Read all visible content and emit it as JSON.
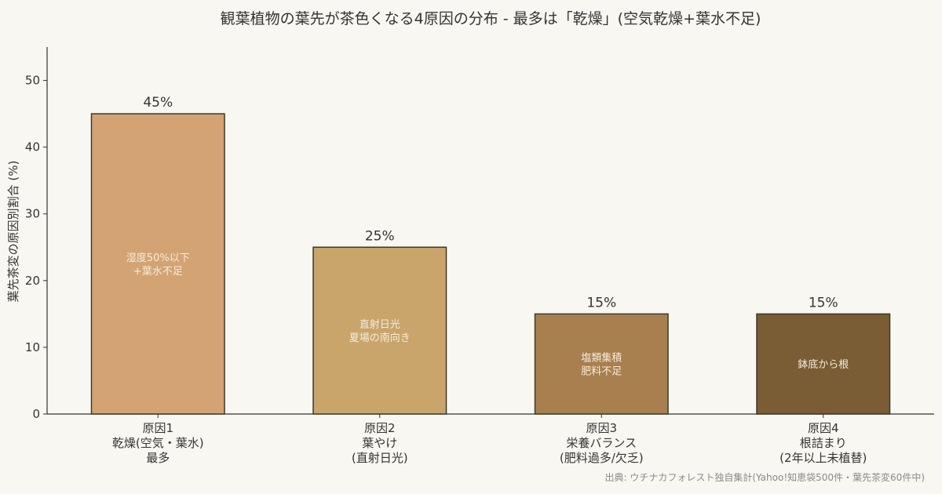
{
  "chart_data": {
    "type": "bar",
    "title": "観葉植物の葉先が茶色くなる4原因の分布 - 最多は「乾燥」(空気乾燥+葉水不足)",
    "ylabel": "葉先茶変の原因別割合 (%)",
    "xlabel": "",
    "ylim": [
      0,
      55
    ],
    "yticks": [
      0,
      10,
      20,
      30,
      40,
      50
    ],
    "grid": false,
    "categories": [
      [
        "原因1",
        "乾燥(空気・葉水)",
        "最多"
      ],
      [
        "原因2",
        "葉やけ",
        "(直射日光)"
      ],
      [
        "原因3",
        "栄養バランス",
        "(肥料過多/欠乏)"
      ],
      [
        "原因4",
        "根詰まり",
        "(2年以上未植替)"
      ]
    ],
    "values": [
      45,
      25,
      15,
      15
    ],
    "value_labels": [
      "45%",
      "25%",
      "15%",
      "15%"
    ],
    "inside_labels": [
      [
        "湿度50%以下",
        "+葉水不足"
      ],
      [
        "直射日光",
        "夏場の南向き"
      ],
      [
        "塩類集積",
        "肥料不足"
      ],
      [
        "鉢底から根"
      ]
    ],
    "colors": [
      "#d4a373",
      "#c9a56b",
      "#a87f4e",
      "#7a5c35"
    ],
    "edge_color": "#3a3a2a"
  },
  "source": "出典: ウチナカフォレスト独自集計(Yahoo!知恵袋500件・葉先茶変60件中)"
}
